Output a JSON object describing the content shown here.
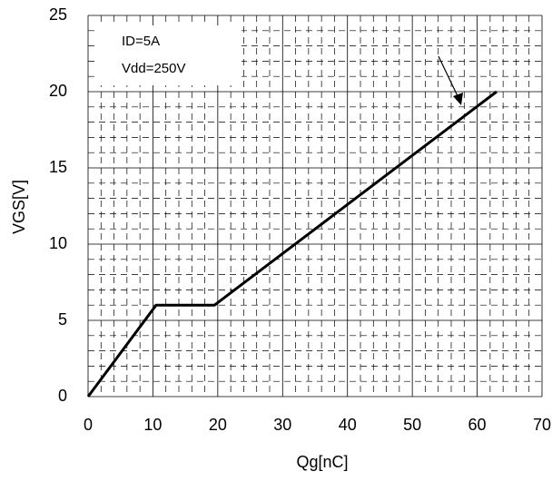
{
  "chart_data": {
    "type": "line",
    "x_label": "Qg[nC]",
    "y_label": "VGS[V]",
    "annotations": [
      "ID=5A",
      "Vdd=250V"
    ],
    "x": [
      0,
      10.5,
      19.5,
      63
    ],
    "series": [
      {
        "color": "#000000",
        "values": [
          0,
          6,
          6,
          20
        ]
      }
    ],
    "xlim": [
      0,
      70
    ],
    "xticks": [
      0,
      10,
      20,
      30,
      40,
      50,
      60,
      70
    ],
    "ylim": [
      0,
      25
    ],
    "yticks": [
      0,
      5,
      10,
      15,
      20,
      25
    ],
    "grid": true
  }
}
